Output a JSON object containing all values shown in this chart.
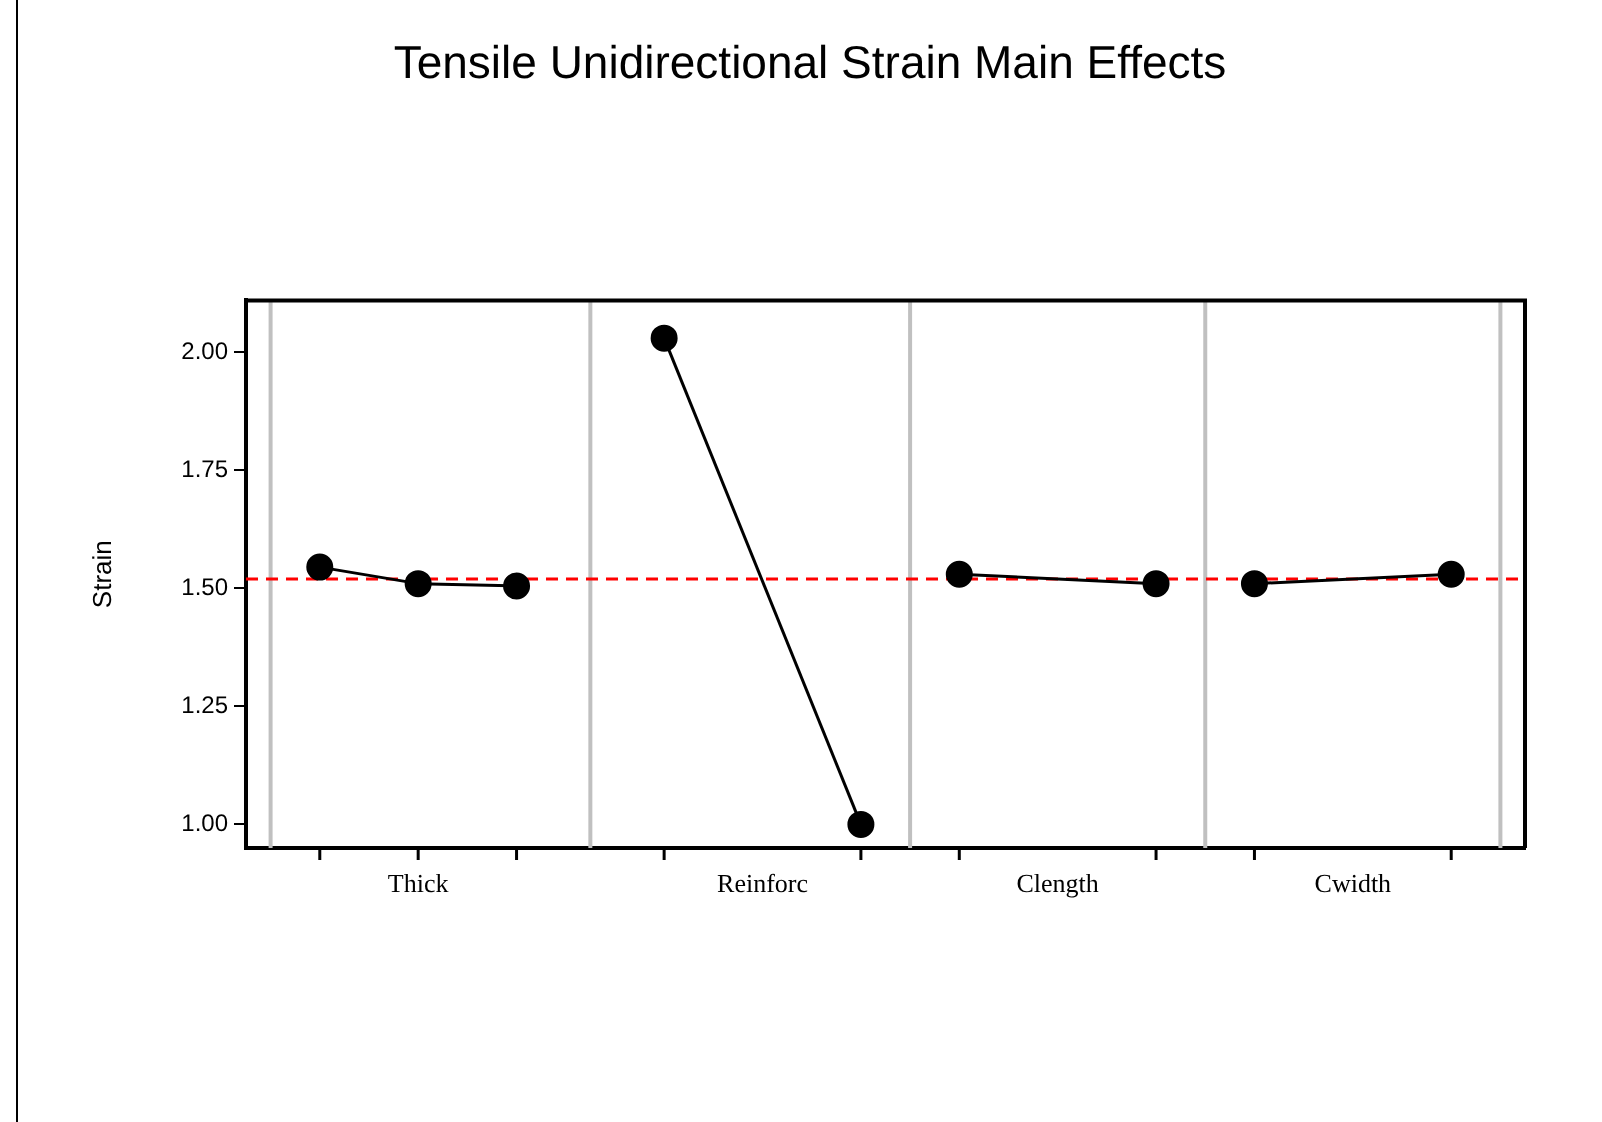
{
  "chart_data": {
    "type": "line",
    "title": "Tensile Unidirectional Strain Main Effects",
    "ylabel": "Strain",
    "categories": [
      null,
      null,
      null,
      null,
      null,
      null,
      null,
      null,
      null,
      null,
      null,
      null,
      null,
      null,
      null,
      null,
      null,
      null,
      null,
      null,
      null,
      null,
      null,
      null,
      null,
      null
    ],
    "series": [
      {
        "color": "#000000",
        "values": [
          null,
          1.545,
          null,
          1.51,
          null,
          1.505,
          null,
          null,
          null,
          null,
          null,
          null,
          null,
          null,
          null,
          null,
          null,
          null,
          null,
          null,
          null,
          null,
          null,
          null,
          null,
          null
        ]
      },
      {
        "color": "#000000",
        "values": [
          null,
          null,
          null,
          null,
          null,
          null,
          null,
          null,
          2.03,
          null,
          null,
          null,
          1.0,
          null,
          null,
          null,
          null,
          null,
          null,
          null,
          null,
          null,
          null,
          null,
          null,
          null
        ]
      },
      {
        "color": "#000000",
        "values": [
          null,
          null,
          null,
          null,
          null,
          null,
          null,
          null,
          null,
          null,
          null,
          null,
          null,
          null,
          1.53,
          null,
          null,
          null,
          1.51,
          null,
          null,
          null,
          null,
          null,
          null,
          null
        ]
      },
      {
        "color": "#000000",
        "values": [
          null,
          null,
          null,
          null,
          null,
          null,
          null,
          null,
          null,
          null,
          null,
          null,
          null,
          null,
          null,
          null,
          null,
          null,
          null,
          null,
          1.51,
          null,
          null,
          null,
          1.53,
          null
        ]
      }
    ],
    "annotations": [
      "Thick",
      "Reinforc",
      "Clength",
      "Cwidth"
    ],
    "ylim": [
      0.95,
      2.11
    ],
    "yticks": [
      {
        "value": 1,
        "label": "1.00"
      },
      {
        "value": 1.25,
        "label": "1.25"
      },
      {
        "value": 1.5,
        "label": "1.50"
      },
      {
        "value": 1.75,
        "label": "1.75"
      },
      {
        "value": 2,
        "label": "2.00"
      }
    ],
    "tick_labels": "y",
    "grid": "x",
    "marker": "circle",
    "line_style": "solid",
    "ref_lines": [
      {
        "axis": "y",
        "value": 1.52,
        "color": "#ff0000",
        "line_style": "dashed"
      }
    ]
  }
}
